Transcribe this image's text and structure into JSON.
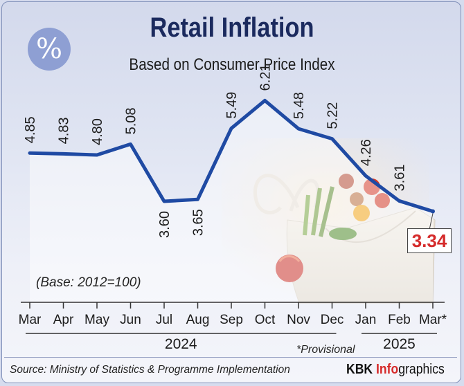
{
  "header": {
    "title": "Retail Inflation",
    "subtitle": "Based on Consumer Price Index",
    "logo_symbol": "%"
  },
  "notes": {
    "base": "(Base: 2012=100)",
    "provisional": "*Provisional"
  },
  "footer": {
    "source": "Source: Ministry of Statistics & Programme Implementation",
    "brand_part1": "KBK ",
    "brand_part2": "Info",
    "brand_part3": "graphics"
  },
  "colors": {
    "line": "#1f4aa3",
    "highlight": "#d52b2b",
    "title": "#1b2a5e"
  },
  "chart_data": {
    "type": "line",
    "title": "Retail Inflation",
    "subtitle": "Based on Consumer Price Index",
    "categories": [
      "Mar",
      "Apr",
      "May",
      "Jun",
      "Jul",
      "Aug",
      "Sep",
      "Oct",
      "Nov",
      "Dec",
      "Jan",
      "Feb",
      "Mar*"
    ],
    "values": [
      4.85,
      4.83,
      4.8,
      5.08,
      3.6,
      3.65,
      5.49,
      6.21,
      5.48,
      5.22,
      4.26,
      3.61,
      3.34
    ],
    "value_labels": [
      "4.85",
      "4.83",
      "4.80",
      "5.08",
      "3.60",
      "3.65",
      "5.49",
      "6.21",
      "5.48",
      "5.22",
      "4.26",
      "3.61",
      "3.34"
    ],
    "year_groups": [
      {
        "label": "2024",
        "from": 0,
        "to": 9
      },
      {
        "label": "2025",
        "from": 10,
        "to": 12
      }
    ],
    "highlight_last": true,
    "grid": false,
    "legend": "none"
  }
}
